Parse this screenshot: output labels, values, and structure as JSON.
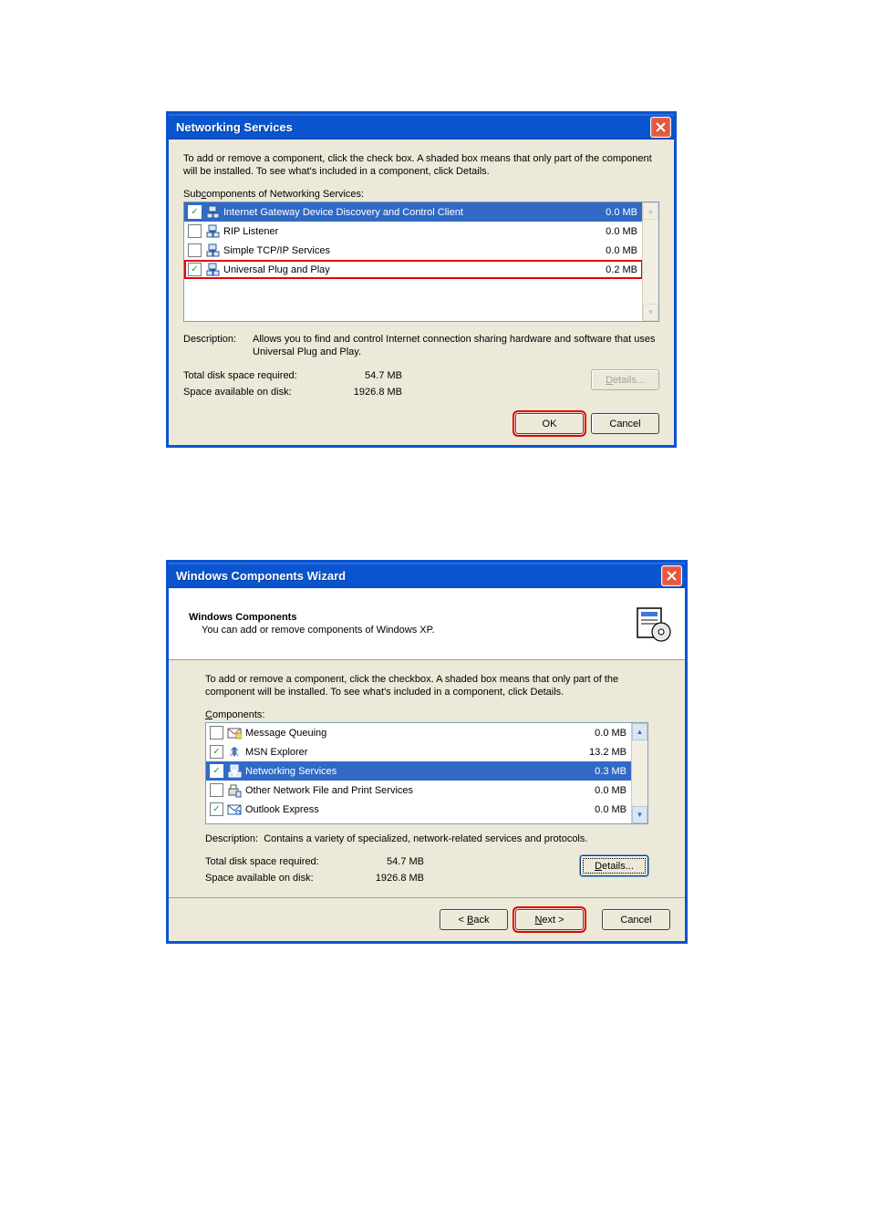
{
  "dialog1": {
    "title": "Networking Services",
    "instruction": "To add or remove a component, click the check box. A shaded box means that only part of the component will be installed. To see what's included in a component, click Details.",
    "list_label": "Subcomponents of Networking Services:",
    "items": [
      {
        "label": "Internet Gateway Device Discovery and Control Client",
        "size": "0.0 MB",
        "checked": true,
        "selected": true,
        "red": false
      },
      {
        "label": "RIP Listener",
        "size": "0.0 MB",
        "checked": false,
        "selected": false,
        "red": false
      },
      {
        "label": "Simple TCP/IP Services",
        "size": "0.0 MB",
        "checked": false,
        "selected": false,
        "red": false
      },
      {
        "label": "Universal Plug and Play",
        "size": "0.2 MB",
        "checked": true,
        "selected": false,
        "red": true
      }
    ],
    "description_label": "Description:",
    "description_text": "Allows you to find and control Internet connection sharing hardware and software that uses Universal Plug and Play.",
    "disk_required_label": "Total disk space required:",
    "disk_required_value": "54.7 MB",
    "disk_available_label": "Space available on disk:",
    "disk_available_value": "1926.8 MB",
    "details_label": "Details...",
    "ok_label": "OK",
    "cancel_label": "Cancel"
  },
  "dialog2": {
    "title": "Windows Components Wizard",
    "header_title": "Windows Components",
    "header_sub": "You can add or remove components of Windows XP.",
    "instruction": "To add or remove a component, click the checkbox.  A shaded box means that only part of the component will be installed.  To see what's included in a component, click Details.",
    "list_label": "Components:",
    "items": [
      {
        "label": "Message Queuing",
        "size": "0.0 MB",
        "checked": false,
        "selected": false
      },
      {
        "label": "MSN Explorer",
        "size": "13.2 MB",
        "checked": true,
        "selected": false
      },
      {
        "label": "Networking Services",
        "size": "0.3 MB",
        "checked": true,
        "selected": true
      },
      {
        "label": "Other Network File and Print Services",
        "size": "0.0 MB",
        "checked": false,
        "selected": false
      },
      {
        "label": "Outlook Express",
        "size": "0.0 MB",
        "checked": true,
        "selected": false
      }
    ],
    "description_label": "Description:",
    "description_text": "Contains a variety of specialized, network-related services and protocols.",
    "disk_required_label": "Total disk space required:",
    "disk_required_value": "54.7 MB",
    "disk_available_label": "Space available on disk:",
    "disk_available_value": "1926.8 MB",
    "details_label": "Details...",
    "back_label": "< Back",
    "next_label": "Next >",
    "cancel_label": "Cancel"
  },
  "colors": {
    "titlebar_bg": "#0a55cf",
    "dialog_bg": "#ece9d8",
    "selection_bg": "#316ac5",
    "highlight_red": "#e80000",
    "close_bg": "#e55740",
    "border_blue": "#7f9db9"
  },
  "icons": {
    "network_pc": "🖳",
    "msn": "🦋",
    "msgq": "✉",
    "net_svc": "🖧",
    "print": "🖶",
    "outlook": "📧",
    "cd_box": "📦"
  }
}
